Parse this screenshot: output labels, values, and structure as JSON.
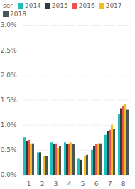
{
  "chart_data": {
    "type": "bar",
    "categories": [
      "1",
      "2",
      "3",
      "4",
      "5",
      "6",
      "7",
      "8"
    ],
    "series": [
      {
        "name": "2014",
        "color": "#1dbfb8",
        "values": [
          0.0075,
          0.0045,
          0.0065,
          0.0065,
          0.0032,
          0.005,
          0.008,
          0.0122
        ]
      },
      {
        "name": "2015",
        "color": "#2d3e3e",
        "values": [
          0.0068,
          0.0045,
          0.0062,
          0.0062,
          0.003,
          0.0058,
          0.0088,
          0.0133
        ]
      },
      {
        "name": "2016",
        "color": "#f05050",
        "values": [
          0.007,
          0.0,
          0.0063,
          0.0063,
          0.0,
          0.0062,
          0.009,
          0.0138
        ]
      },
      {
        "name": "2017",
        "color": "#f0c020",
        "values": [
          0.0063,
          0.0038,
          0.0053,
          0.0065,
          0.0038,
          0.0063,
          0.01,
          0.0142
        ]
      },
      {
        "name": "2018",
        "color": "#4a5555",
        "values": [
          0.0063,
          0.0038,
          0.0057,
          0.0062,
          0.004,
          0.0063,
          0.0092,
          0.013
        ]
      }
    ],
    "ylim": [
      0.0,
      0.03
    ],
    "yticks": [
      {
        "value": 0.0,
        "label": "0.0%"
      },
      {
        "value": 0.005,
        "label": "0.5%"
      },
      {
        "value": 0.01,
        "label": "1.0%"
      },
      {
        "value": 0.015,
        "label": "1.5%"
      },
      {
        "value": 0.02,
        "label": "2.0%"
      },
      {
        "value": 0.025,
        "label": "2.5%"
      },
      {
        "value": 0.03,
        "label": "3.0%"
      }
    ],
    "legend_title": "ser",
    "legend": "upper left",
    "grid": true
  }
}
